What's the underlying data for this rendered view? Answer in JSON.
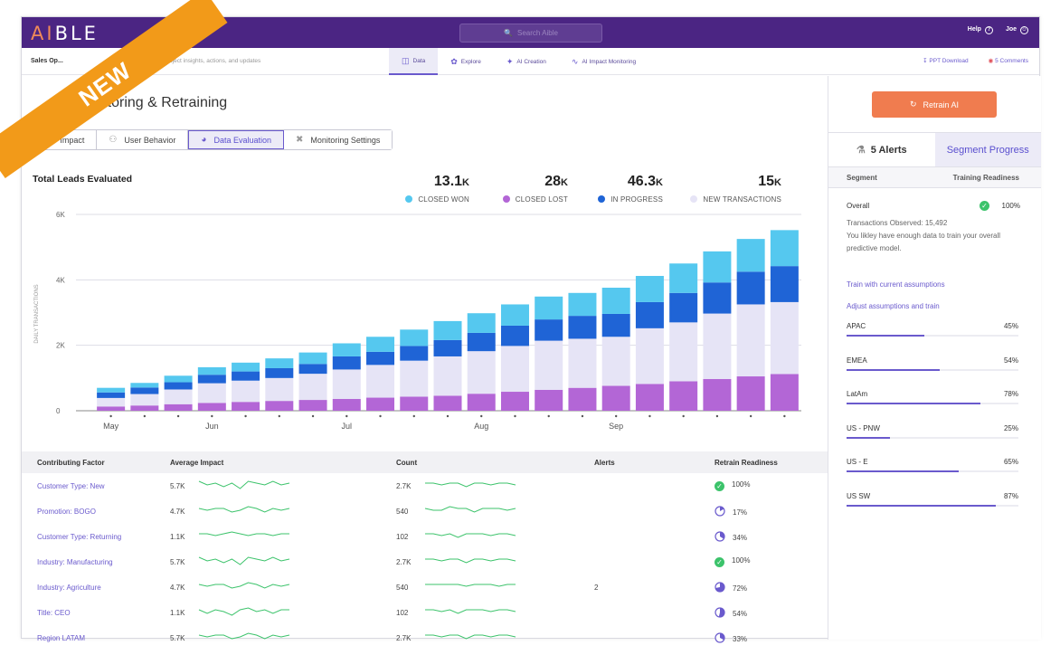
{
  "app": {
    "logo_main": "AIBLE",
    "search_placeholder": "Search Aible",
    "help_label": "Help",
    "user_label": "Joe"
  },
  "subnav": {
    "crumb": "Sales Op...",
    "description": "search project insights, actions, and updates",
    "tabs": [
      {
        "label": "Data",
        "icon": "database-icon"
      },
      {
        "label": "Explore",
        "icon": "explore-icon"
      },
      {
        "label": "AI Creation",
        "icon": "wand-icon"
      },
      {
        "label": "AI Impact Monitoring",
        "icon": "pulse-icon"
      }
    ],
    "ppt_label": "PPT Download",
    "comments_label": "5 Comments"
  },
  "page": {
    "title": "Monitoring & Retraining",
    "tabs": [
      "Impact",
      "User Behavior",
      "Data Evaluation",
      "Monitoring Settings"
    ]
  },
  "badge": {
    "label": "NEW"
  },
  "kpis": [
    {
      "value": "13.1",
      "unit": "K",
      "label": "CLOSED WON",
      "color": "#55c8ef"
    },
    {
      "value": "28",
      "unit": "K",
      "label": "CLOSED LOST",
      "color": "#b366d6"
    },
    {
      "value": "46.3",
      "unit": "K",
      "label": "IN PROGRESS",
      "color": "#1f64d6"
    },
    {
      "value": "15",
      "unit": "K",
      "label": "NEW TRANSACTIONS",
      "color": "#e6e4f6"
    }
  ],
  "chart_data": {
    "type": "bar",
    "stacked": true,
    "title": "Total Leads Evaluated",
    "ylabel": "DAILY TRANSACTIONS",
    "ylim": [
      0,
      6000
    ],
    "yticks": [
      "0",
      "2K",
      "4K",
      "6K"
    ],
    "x_month_labels": [
      {
        "label": "May",
        "index": 0
      },
      {
        "label": "Jun",
        "index": 3
      },
      {
        "label": "Jul",
        "index": 7
      },
      {
        "label": "Aug",
        "index": 11
      },
      {
        "label": "Sep",
        "index": 15
      }
    ],
    "series": [
      {
        "name": "Closed Lost",
        "color": "#b366d6",
        "values": [
          130,
          160,
          200,
          240,
          270,
          300,
          330,
          360,
          400,
          430,
          460,
          520,
          580,
          640,
          700,
          760,
          820,
          900,
          970,
          1050,
          1120
        ]
      },
      {
        "name": "New Transactions",
        "color": "#e6e4f6",
        "values": [
          260,
          350,
          450,
          600,
          650,
          700,
          800,
          900,
          1000,
          1100,
          1200,
          1300,
          1400,
          1500,
          1500,
          1500,
          1700,
          1800,
          2000,
          2200,
          2200
        ]
      },
      {
        "name": "In Progress",
        "color": "#1f64d6",
        "values": [
          170,
          200,
          220,
          260,
          280,
          300,
          300,
          400,
          400,
          450,
          500,
          560,
          620,
          650,
          700,
          700,
          800,
          900,
          950,
          1000,
          1100
        ]
      },
      {
        "name": "Closed Won",
        "color": "#55c8ef",
        "values": [
          140,
          140,
          200,
          230,
          270,
          300,
          350,
          400,
          460,
          500,
          580,
          600,
          650,
          700,
          700,
          800,
          800,
          900,
          950,
          1000,
          1100
        ]
      }
    ]
  },
  "table": {
    "headers": [
      "Contributing Factor",
      "Average Impact",
      "Count",
      "Alerts",
      "Retrain Readiness"
    ],
    "rows": [
      {
        "factor": "Customer Type: New",
        "impact": "5.7K",
        "count": "2.7K",
        "alerts": "",
        "readiness": "100%",
        "done": true
      },
      {
        "factor": "Promotion: BOGO",
        "impact": "4.7K",
        "count": "540",
        "alerts": "",
        "readiness": "17%",
        "done": false
      },
      {
        "factor": "Customer Type: Returning",
        "impact": "1.1K",
        "count": "102",
        "alerts": "",
        "readiness": "34%",
        "done": false
      },
      {
        "factor": "Industry: Manufacturing",
        "impact": "5.7K",
        "count": "2.7K",
        "alerts": "",
        "readiness": "100%",
        "done": true
      },
      {
        "factor": "Industry: Agriculture",
        "impact": "4.7K",
        "count": "540",
        "alerts": "2",
        "readiness": "72%",
        "done": false
      },
      {
        "factor": "Title: CEO",
        "impact": "1.1K",
        "count": "102",
        "alerts": "",
        "readiness": "54%",
        "done": false
      },
      {
        "factor": "Region LATAM",
        "impact": "5.7K",
        "count": "2.7K",
        "alerts": "",
        "readiness": "33%",
        "done": false
      }
    ]
  },
  "right_panel": {
    "retrain_label": "Retrain AI",
    "alerts_label": "5 Alerts",
    "segment_progress_label": "Segment Progress",
    "col_segment": "Segment",
    "col_readiness": "Training Readiness",
    "overall_label": "Overall",
    "overall_pct": "100%",
    "observed": "Transactions Observed: 15,492",
    "observed_note": "You likley have enough data to train your overall predictive model.",
    "link1": "Train with current assumptions",
    "link2": "Adjust assumptions and train",
    "segments": [
      {
        "name": "APAC",
        "pct": "45%",
        "value": 45
      },
      {
        "name": "EMEA",
        "pct": "54%",
        "value": 54
      },
      {
        "name": "LatAm",
        "pct": "78%",
        "value": 78
      },
      {
        "name": "US - PNW",
        "pct": "25%",
        "value": 25
      },
      {
        "name": "US - E",
        "pct": "65%",
        "value": 65
      },
      {
        "name": "US SW",
        "pct": "87%",
        "value": 87
      }
    ]
  }
}
